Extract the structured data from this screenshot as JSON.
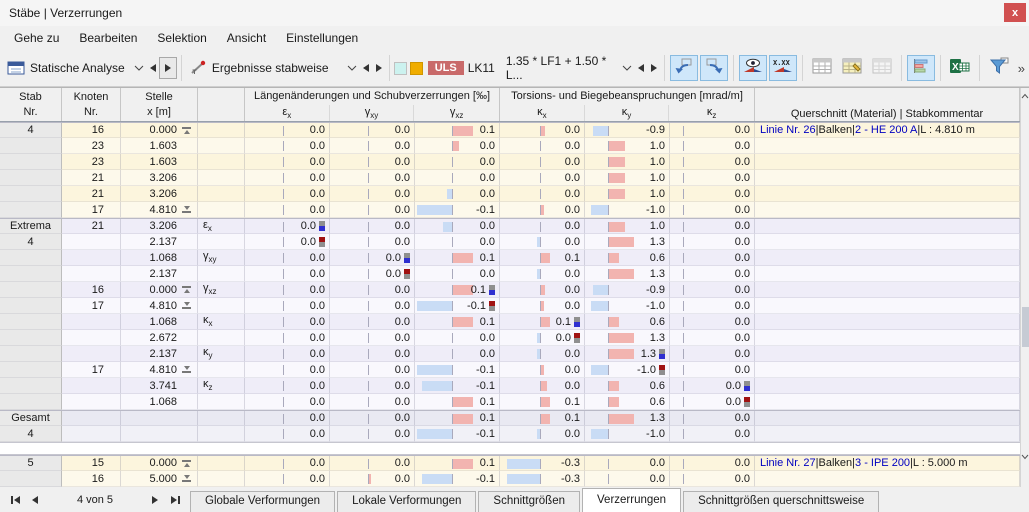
{
  "window": {
    "title": "Stäbe | Verzerrungen"
  },
  "menu": [
    "Gehe zu",
    "Bearbeiten",
    "Selektion",
    "Ansicht",
    "Einstellungen"
  ],
  "toolbar": {
    "analysis_label": "Statische Analyse",
    "results_label": "Ergebnisse stabweise",
    "uls_badge": "ULS",
    "case_label": "LK11",
    "combo_label": "1.35 * LF1 + 1.50 * L...",
    "overflow": "»",
    "buttonGroups": [
      [
        {
          "name": "jump-back",
          "active": true
        },
        {
          "name": "jump-forward",
          "active": true
        }
      ],
      [
        {
          "name": "show-results",
          "active": true
        },
        {
          "name": "show-values",
          "active": true
        }
      ],
      [
        {
          "name": "table-view",
          "active": false
        },
        {
          "name": "table-edit",
          "active": false
        },
        {
          "name": "table-print",
          "active": false
        }
      ],
      [
        {
          "name": "result-diagrams",
          "active": true
        }
      ],
      [
        {
          "name": "excel-export",
          "active": false
        }
      ],
      [
        {
          "name": "filter",
          "active": false
        }
      ]
    ]
  },
  "table": {
    "headers": {
      "stab": [
        "Stab",
        "Nr."
      ],
      "knoten": [
        "Knoten",
        "Nr."
      ],
      "stelle": [
        "Stelle",
        "x [m]"
      ],
      "group1": "Längenänderungen und Schubverzerrungen [‰]",
      "group2": "Torsions- und Biegebeanspruchungen [mrad/m]",
      "querschnitt": "Querschnitt (Material) | Stabkommentar",
      "sub": [
        {
          "b": "ε",
          "s": "x"
        },
        {
          "b": "γ",
          "s": "xy"
        },
        {
          "b": "γ",
          "s": "xz"
        },
        {
          "b": "κ",
          "s": "x"
        },
        {
          "b": "κ",
          "s": "y"
        },
        {
          "b": "κ",
          "s": "z"
        }
      ]
    },
    "zero": [
      38,
      38,
      37,
      40,
      23,
      13
    ],
    "rows": [
      {
        "g": "member",
        "stab": "4",
        "kn": "16",
        "x": "0.000",
        "xm": "start",
        "c": [
          {
            "v": "0.0"
          },
          {
            "v": "0.0"
          },
          {
            "v": "0.1",
            "b": 20
          },
          {
            "v": "0.0",
            "b": 4
          },
          {
            "v": "-0.9",
            "b": -15
          },
          {
            "v": "0.0"
          }
        ],
        "cm": [
          "Linie Nr. 26",
          "Balken",
          "2 - HE 200 A",
          "L : 4.810 m"
        ]
      },
      {
        "g": "member",
        "kn": "23",
        "x": "1.603",
        "c": [
          {
            "v": "0.0"
          },
          {
            "v": "0.0"
          },
          {
            "v": "0.0",
            "b": 6
          },
          {
            "v": "0.0"
          },
          {
            "v": "1.0",
            "b": 16
          },
          {
            "v": "0.0"
          }
        ]
      },
      {
        "g": "member",
        "kn": "23",
        "x": "1.603",
        "c": [
          {
            "v": "0.0"
          },
          {
            "v": "0.0"
          },
          {
            "v": "0.0"
          },
          {
            "v": "0.0"
          },
          {
            "v": "1.0",
            "b": 16
          },
          {
            "v": "0.0"
          }
        ]
      },
      {
        "g": "member",
        "kn": "21",
        "x": "3.206",
        "c": [
          {
            "v": "0.0"
          },
          {
            "v": "0.0"
          },
          {
            "v": "0.0"
          },
          {
            "v": "0.0"
          },
          {
            "v": "1.0",
            "b": 16
          },
          {
            "v": "0.0"
          }
        ]
      },
      {
        "g": "member",
        "kn": "21",
        "x": "3.206",
        "c": [
          {
            "v": "0.0"
          },
          {
            "v": "0.0"
          },
          {
            "v": "0.0",
            "b": -5
          },
          {
            "v": "0.0"
          },
          {
            "v": "1.0",
            "b": 16
          },
          {
            "v": "0.0"
          }
        ]
      },
      {
        "g": "member",
        "kn": "17",
        "x": "4.810",
        "xm": "end",
        "c": [
          {
            "v": "0.0"
          },
          {
            "v": "0.0"
          },
          {
            "v": "-0.1",
            "b": -35
          },
          {
            "v": "0.0",
            "b": 3
          },
          {
            "v": "-1.0",
            "b": -17
          },
          {
            "v": "0.0"
          }
        ]
      },
      {
        "g": "extrema",
        "stab": "Extrema",
        "kn": "21",
        "x": "3.206",
        "lbl": {
          "b": "ε",
          "s": "x"
        },
        "c": [
          {
            "v": "0.0",
            "m": "A"
          },
          {
            "v": "0.0"
          },
          {
            "v": "0.0",
            "b": -9
          },
          {
            "v": "0.0"
          },
          {
            "v": "1.0",
            "b": 16
          },
          {
            "v": "0.0"
          }
        ]
      },
      {
        "g": "extrema",
        "stab": "4",
        "x": "2.137",
        "c": [
          {
            "v": "0.0",
            "m": "B"
          },
          {
            "v": "0.0"
          },
          {
            "v": "0.0"
          },
          {
            "v": "0.0",
            "b": -3
          },
          {
            "v": "1.3",
            "b": 25
          },
          {
            "v": "0.0"
          }
        ]
      },
      {
        "g": "extrema",
        "x": "1.068",
        "lbl": {
          "b": "γ",
          "s": "xy"
        },
        "c": [
          {
            "v": "0.0"
          },
          {
            "v": "0.0",
            "m": "A"
          },
          {
            "v": "0.1",
            "b": 20
          },
          {
            "v": "0.1",
            "b": 9
          },
          {
            "v": "0.6",
            "b": 10
          },
          {
            "v": "0.0"
          }
        ]
      },
      {
        "g": "extrema",
        "x": "2.137",
        "c": [
          {
            "v": "0.0"
          },
          {
            "v": "0.0",
            "m": "B"
          },
          {
            "v": "0.0"
          },
          {
            "v": "0.0",
            "b": -3
          },
          {
            "v": "1.3",
            "b": 25
          },
          {
            "v": "0.0"
          }
        ]
      },
      {
        "g": "extrema",
        "kn": "16",
        "x": "0.000",
        "xm": "start",
        "lbl": {
          "b": "γ",
          "s": "xz"
        },
        "c": [
          {
            "v": "0.0"
          },
          {
            "v": "0.0"
          },
          {
            "v": "0.1",
            "b": 20,
            "m": "A"
          },
          {
            "v": "0.0",
            "b": 4
          },
          {
            "v": "-0.9",
            "b": -15
          },
          {
            "v": "0.0"
          }
        ]
      },
      {
        "g": "extrema",
        "kn": "17",
        "x": "4.810",
        "xm": "end",
        "c": [
          {
            "v": "0.0"
          },
          {
            "v": "0.0"
          },
          {
            "v": "-0.1",
            "b": -35,
            "m": "B"
          },
          {
            "v": "0.0",
            "b": 3
          },
          {
            "v": "-1.0",
            "b": -17
          },
          {
            "v": "0.0"
          }
        ]
      },
      {
        "g": "extrema",
        "x": "1.068",
        "lbl": {
          "b": "κ",
          "s": "x"
        },
        "c": [
          {
            "v": "0.0"
          },
          {
            "v": "0.0"
          },
          {
            "v": "0.1",
            "b": 20
          },
          {
            "v": "0.1",
            "b": 9,
            "m": "A"
          },
          {
            "v": "0.6",
            "b": 10
          },
          {
            "v": "0.0"
          }
        ]
      },
      {
        "g": "extrema",
        "x": "2.672",
        "c": [
          {
            "v": "0.0"
          },
          {
            "v": "0.0"
          },
          {
            "v": "0.0"
          },
          {
            "v": "0.0",
            "b": -3,
            "m": "B"
          },
          {
            "v": "1.3",
            "b": 25
          },
          {
            "v": "0.0"
          }
        ]
      },
      {
        "g": "extrema",
        "x": "2.137",
        "lbl": {
          "b": "κ",
          "s": "y"
        },
        "c": [
          {
            "v": "0.0"
          },
          {
            "v": "0.0"
          },
          {
            "v": "0.0"
          },
          {
            "v": "0.0",
            "b": -3
          },
          {
            "v": "1.3",
            "b": 25,
            "m": "A"
          },
          {
            "v": "0.0"
          }
        ]
      },
      {
        "g": "extrema",
        "kn": "17",
        "x": "4.810",
        "xm": "end",
        "c": [
          {
            "v": "0.0"
          },
          {
            "v": "0.0"
          },
          {
            "v": "-0.1",
            "b": -35
          },
          {
            "v": "0.0",
            "b": 3
          },
          {
            "v": "-1.0",
            "b": -17,
            "m": "B"
          },
          {
            "v": "0.0"
          }
        ]
      },
      {
        "g": "extrema",
        "x": "3.741",
        "lbl": {
          "b": "κ",
          "s": "z"
        },
        "c": [
          {
            "v": "0.0"
          },
          {
            "v": "0.0"
          },
          {
            "v": "-0.1",
            "b": -30
          },
          {
            "v": "0.0",
            "b": 6
          },
          {
            "v": "0.6",
            "b": 10
          },
          {
            "v": "0.0",
            "m": "A"
          }
        ]
      },
      {
        "g": "extrema",
        "x": "1.068",
        "c": [
          {
            "v": "0.0"
          },
          {
            "v": "0.0"
          },
          {
            "v": "0.1",
            "b": 20
          },
          {
            "v": "0.1",
            "b": 9
          },
          {
            "v": "0.6",
            "b": 10
          },
          {
            "v": "0.0",
            "m": "B"
          }
        ]
      },
      {
        "g": "total",
        "stab": "Gesamt",
        "c": [
          {
            "v": "0.0"
          },
          {
            "v": "0.0"
          },
          {
            "v": "0.1",
            "b": 20
          },
          {
            "v": "0.1",
            "b": 9
          },
          {
            "v": "1.3",
            "b": 25
          },
          {
            "v": "0.0"
          }
        ]
      },
      {
        "g": "total",
        "stab": "4",
        "c": [
          {
            "v": "0.0"
          },
          {
            "v": "0.0"
          },
          {
            "v": "-0.1",
            "b": -35
          },
          {
            "v": "0.0",
            "b": -3
          },
          {
            "v": "-1.0",
            "b": -17
          },
          {
            "v": "0.0"
          }
        ]
      },
      {
        "g": "spacer"
      },
      {
        "g": "member",
        "stab": "5",
        "kn": "15",
        "x": "0.000",
        "xm": "start",
        "c": [
          {
            "v": "0.0"
          },
          {
            "v": "0.0"
          },
          {
            "v": "0.1",
            "b": 20
          },
          {
            "v": "-0.3",
            "b": -33
          },
          {
            "v": "0.0"
          },
          {
            "v": "0.0"
          }
        ],
        "cm": [
          "Linie Nr. 27",
          "Balken",
          "3 - IPE 200",
          "L : 5.000 m"
        ]
      },
      {
        "g": "member",
        "kn": "16",
        "x": "5.000",
        "xm": "end",
        "c": [
          {
            "v": "0.0"
          },
          {
            "v": "0.0",
            "b": 2
          },
          {
            "v": "-0.1",
            "b": -30
          },
          {
            "v": "-0.3",
            "b": -33
          },
          {
            "v": "0.0"
          },
          {
            "v": "0.0"
          }
        ]
      }
    ]
  },
  "tabbar": {
    "page": "4 von 5",
    "active": 3,
    "tabs": [
      "Globale Verformungen",
      "Lokale Verformungen",
      "Schnittgrößen",
      "Verzerrungen",
      "Schnittgrößen querschnittsweise"
    ]
  },
  "colors": {
    "barpos": "#f2b4b0",
    "barneg": "#c9dcf5",
    "btnActiveBg": "#cfe7fa",
    "btnActiveBorder": "#89bbe0",
    "ulsBg": "#c96a6a",
    "swatch1": "#ccf2ef",
    "swatch2": "#f0ad00",
    "linkBlue": "#0000c0",
    "memberBg": "#fcf5dd",
    "memberAlt": "#fdf9eb",
    "extremaBg": "#efedf8",
    "extremaAlt": "#f9f8fd",
    "totalBg": "#e9e9f2",
    "totalAlt": "#f1f1f7",
    "markMax": "#a01212",
    "markMin": "#2f2fd0",
    "markGray": "#8f8f8f"
  }
}
